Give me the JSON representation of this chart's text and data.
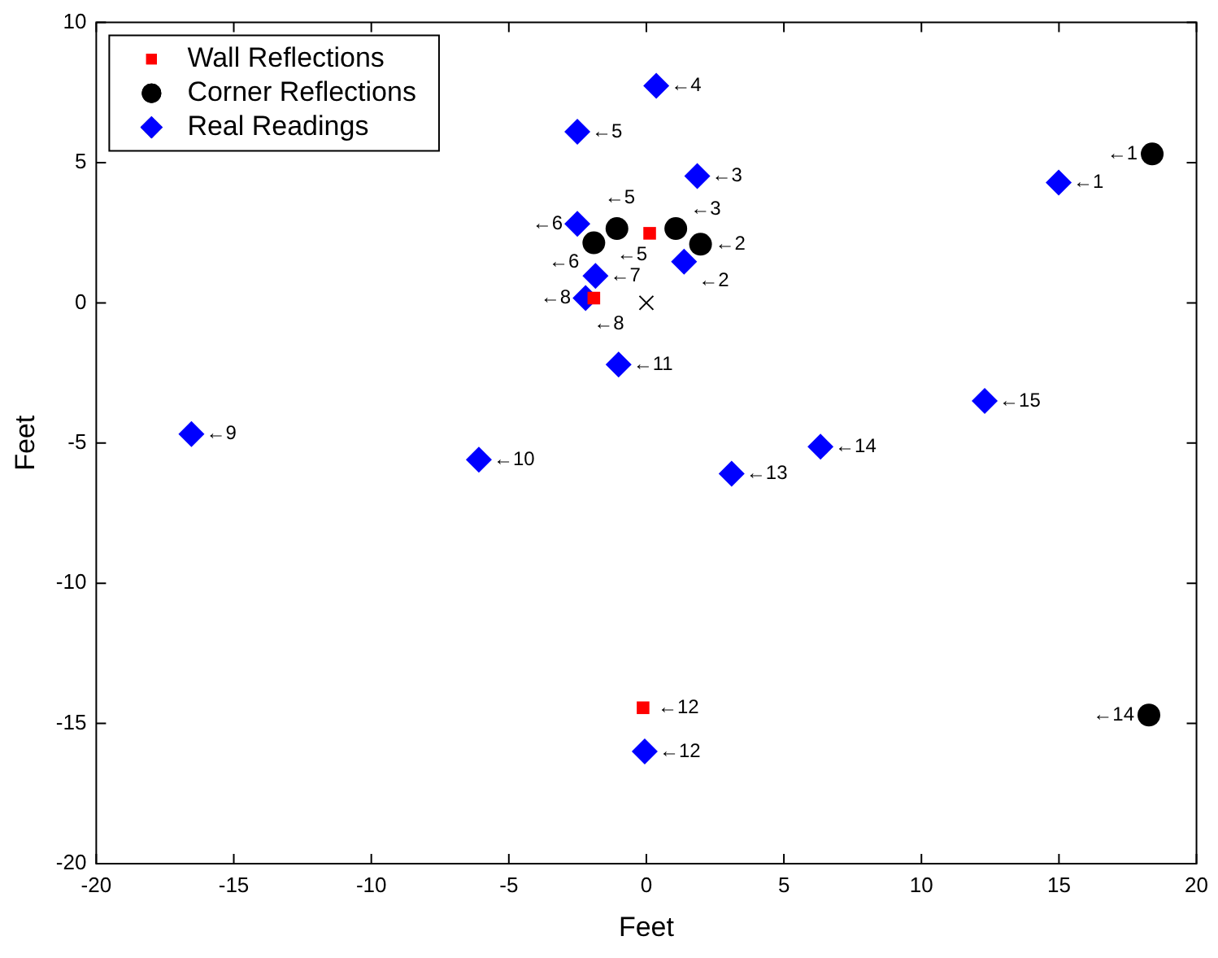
{
  "chart_data": {
    "type": "scatter",
    "xlabel": "Feet",
    "ylabel": "Feet",
    "xlim": [
      -20,
      20
    ],
    "ylim": [
      -20,
      10
    ],
    "xticks": [
      -20,
      -15,
      -10,
      -5,
      0,
      5,
      10,
      15,
      20
    ],
    "yticks": [
      -20,
      -15,
      -10,
      -5,
      0,
      5,
      10
    ],
    "grid": false,
    "legend": "top left",
    "series": [
      {
        "name": "Wall Reflections",
        "color": "#ff0000",
        "marker": "square",
        "x": [
          0.12,
          -1.91,
          -0.12
        ],
        "values": [
          2.48,
          0.17,
          -14.44
        ]
      },
      {
        "name": "Corner Reflections",
        "color": "#000000",
        "marker": "circle",
        "x": [
          18.39,
          1.97,
          1.07,
          -1.07,
          -1.91,
          18.27
        ],
        "values": [
          5.31,
          2.09,
          2.65,
          2.65,
          2.14,
          -14.7
        ]
      },
      {
        "name": "Real Readings",
        "color": "#0000ff",
        "marker": "diamond",
        "x": [
          14.99,
          1.37,
          1.85,
          0.36,
          -2.51,
          -2.51,
          -1.85,
          -2.21,
          -16.54,
          -6.09,
          -1.01,
          -0.06,
          3.1,
          6.33,
          12.3
        ],
        "values": [
          4.29,
          1.47,
          4.52,
          7.74,
          6.1,
          2.82,
          0.96,
          0.17,
          -4.68,
          -5.59,
          -2.2,
          -16.0,
          -6.09,
          -5.13,
          -3.5
        ]
      },
      {
        "color": "#000000",
        "marker": "cross",
        "x": [
          0
        ],
        "values": [
          0
        ]
      }
    ],
    "annotations": [
      {
        "text": "←5",
        "x": 0.12,
        "y": 2.48
      },
      {
        "text": "←8",
        "x": -1.91,
        "y": 0.17
      },
      {
        "text": "←12",
        "x": -0.12,
        "y": -14.44
      },
      {
        "text": "←1",
        "x": 18.39,
        "y": 5.31
      },
      {
        "text": "←2",
        "x": 1.97,
        "y": 2.09
      },
      {
        "text": "←3",
        "x": 1.07,
        "y": 2.65
      },
      {
        "text": "←5",
        "x": -1.07,
        "y": 2.65
      },
      {
        "text": "←6",
        "x": -1.91,
        "y": 2.14
      },
      {
        "text": "←14",
        "x": 18.27,
        "y": -14.7
      },
      {
        "text": "←1",
        "x": 14.99,
        "y": 4.29
      },
      {
        "text": "←2",
        "x": 1.37,
        "y": 1.47
      },
      {
        "text": "←3",
        "x": 1.85,
        "y": 4.52
      },
      {
        "text": "←4",
        "x": 0.36,
        "y": 7.74
      },
      {
        "text": "←5",
        "x": -2.51,
        "y": 6.1
      },
      {
        "text": "←6",
        "x": -2.51,
        "y": 2.82
      },
      {
        "text": "←7",
        "x": -1.85,
        "y": 0.96
      },
      {
        "text": "←8",
        "x": -2.21,
        "y": 0.17
      },
      {
        "text": "←9",
        "x": -16.54,
        "y": -4.68
      },
      {
        "text": "←10",
        "x": -6.09,
        "y": -5.59
      },
      {
        "text": "←11",
        "x": -1.01,
        "y": -2.2
      },
      {
        "text": "←12",
        "x": -0.06,
        "y": -16.0
      },
      {
        "text": "←13",
        "x": 3.1,
        "y": -6.09
      },
      {
        "text": "←14",
        "x": 6.33,
        "y": -5.13
      },
      {
        "text": "←15",
        "x": 12.3,
        "y": -3.5
      }
    ]
  }
}
